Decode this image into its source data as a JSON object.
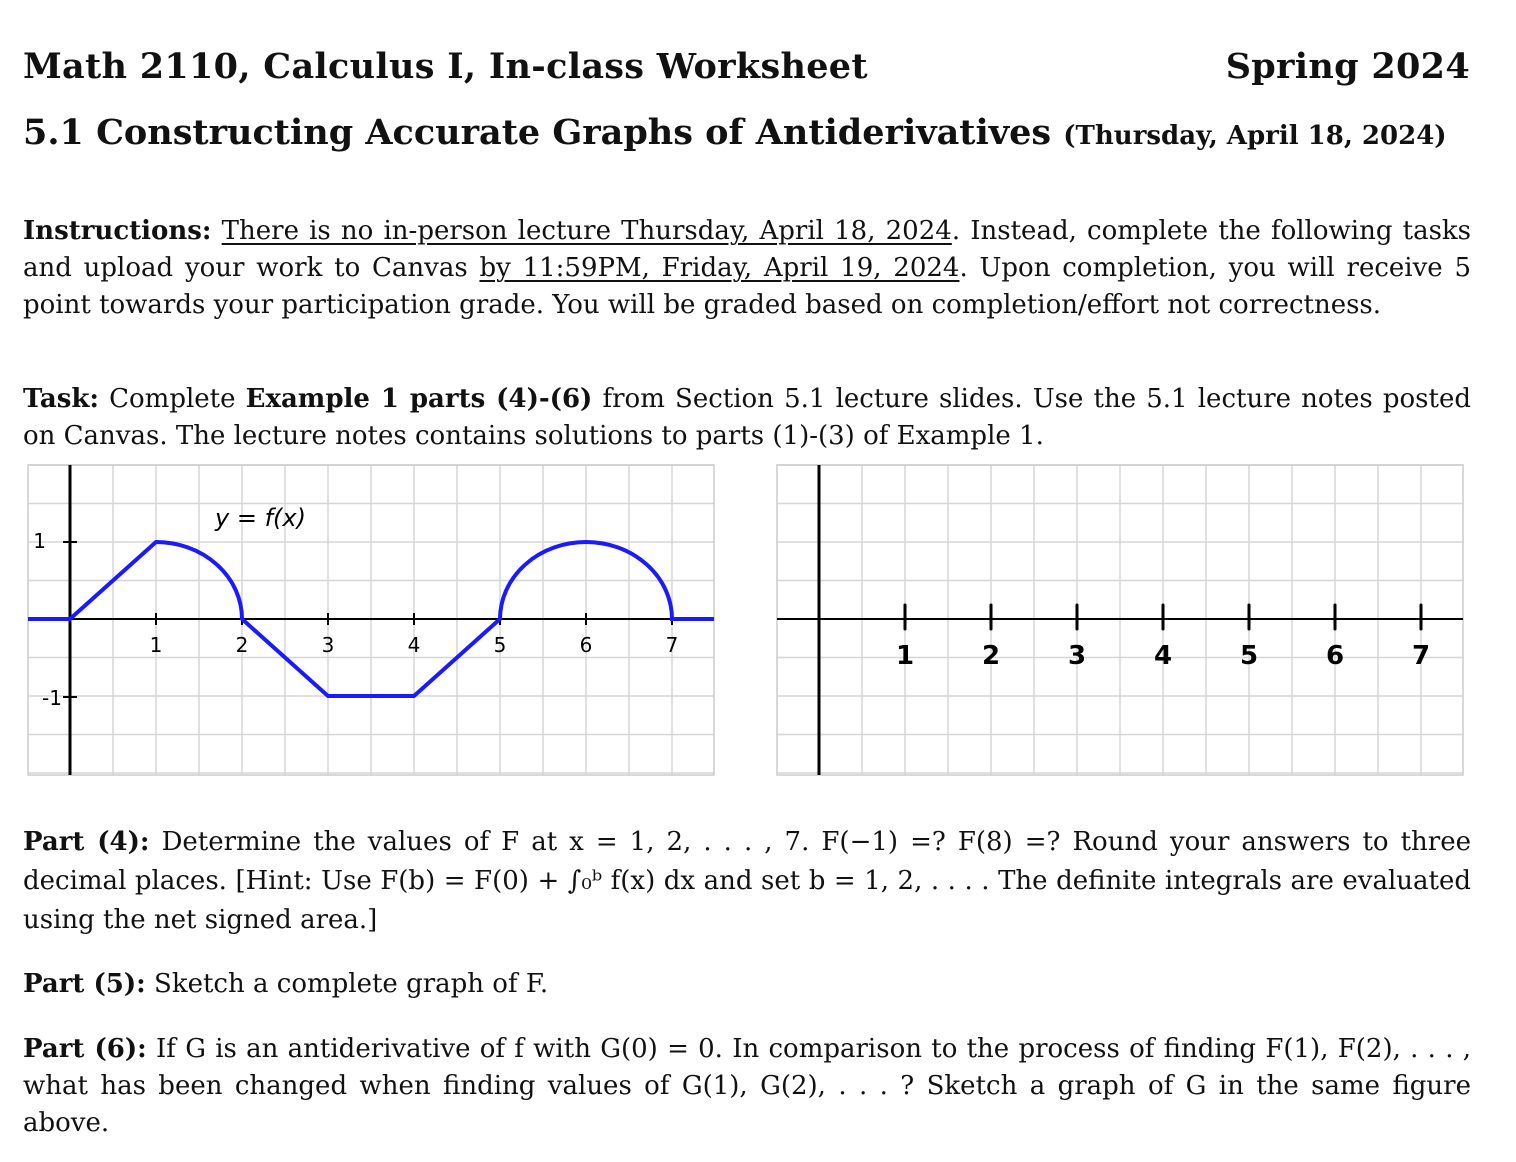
{
  "header": {
    "course": "Math 2110, Calculus I, In-class Worksheet",
    "term": "Spring 2024",
    "section_title": "5.1 Constructing Accurate Graphs of Antiderivatives",
    "section_date": "(Thursday, April 18, 2024)"
  },
  "instructions": {
    "label": "Instructions:",
    "u1": "There is no in-person lecture Thursday, April 18, 2024",
    "t1": ". Instead, complete the following tasks and upload your work to Canvas ",
    "u2": "by 11:59PM, Friday, April 19, 2024",
    "t2": ". Upon completion, you will receive 5 point towards your participation grade. You will be graded based on completion/effort not correctness."
  },
  "task": {
    "label": "Task:",
    "t1": " Complete ",
    "bold": "Example 1 parts (4)-(6)",
    "t2": " from Section 5.1 lecture slides. Use the 5.1 lecture notes posted on Canvas. The lecture notes contains solutions to parts (1)-(3) of Example 1."
  },
  "left_graph": {
    "curve_label": "y = f(x)",
    "x_ticks": [
      "1",
      "2",
      "3",
      "4",
      "5",
      "6",
      "7"
    ],
    "y_ticks": [
      "1",
      "-1"
    ],
    "curve_color": "#1a1aff"
  },
  "right_graph": {
    "x_ticks": [
      "1",
      "2",
      "3",
      "4",
      "5",
      "6",
      "7"
    ]
  },
  "part4": {
    "label": "Part (4):",
    "text": " Determine the values of F at x = 1, 2, . . . , 7. F(−1) =? F(8) =? Round your answers to three decimal places. [Hint: Use F(b) = F(0) + ∫₀ᵇ f(x) dx and set b = 1, 2, . . . . The definite integrals are evaluated using the net signed area.]"
  },
  "part5": {
    "label": "Part (5):",
    "text": " Sketch a complete graph of F."
  },
  "part6": {
    "label": "Part (6):",
    "text": " If G is an antiderivative of f with G(0) = 0. In comparison to the process of finding F(1), F(2), . . . , what has been changed when finding values of G(1), G(2), . . . ? Sketch a graph of G in the same figure above."
  }
}
